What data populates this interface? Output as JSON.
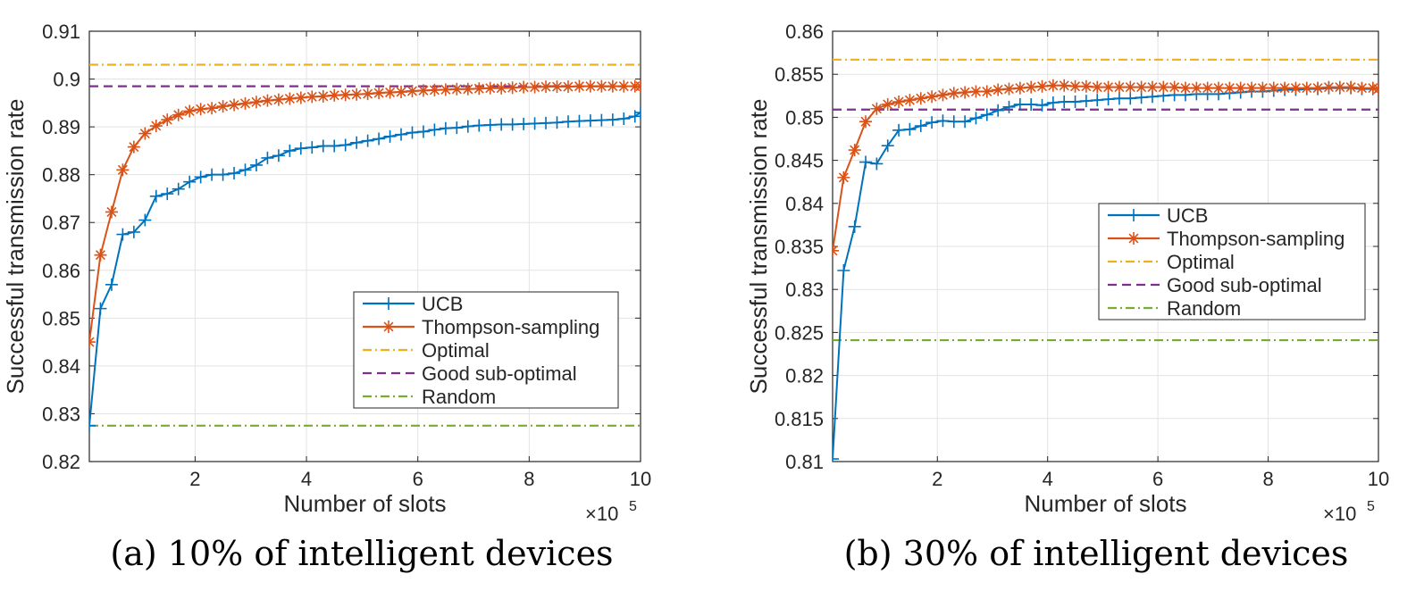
{
  "chart_data": [
    {
      "type": "line",
      "caption": "(a) 10% of intelligent devices",
      "xlabel": "Number of slots",
      "ylabel": "Successful transmission rate",
      "x_multiplier_label": "×10",
      "x_multiplier_exponent": "5",
      "xlim": [
        0.1,
        10
      ],
      "ylim": [
        0.82,
        0.91
      ],
      "xticks": [
        2,
        4,
        6,
        8,
        10
      ],
      "xtick_labels": [
        "2",
        "4",
        "6",
        "8",
        "10"
      ],
      "yticks": [
        0.82,
        0.83,
        0.84,
        0.85,
        0.86,
        0.87,
        0.88,
        0.89,
        0.9,
        0.91
      ],
      "ytick_labels": [
        "0.82",
        "0.83",
        "0.84",
        "0.85",
        "0.86",
        "0.87",
        "0.88",
        "0.89",
        "0.9",
        "0.91"
      ],
      "grid": true,
      "legend_placement": "lower-right",
      "x": [
        0.1,
        0.3,
        0.5,
        0.7,
        0.9,
        1.1,
        1.3,
        1.5,
        1.7,
        1.9,
        2.1,
        2.3,
        2.5,
        2.7,
        2.9,
        3.1,
        3.3,
        3.5,
        3.7,
        3.9,
        4.1,
        4.3,
        4.5,
        4.7,
        4.9,
        5.1,
        5.3,
        5.5,
        5.7,
        5.9,
        6.1,
        6.3,
        6.5,
        6.7,
        6.9,
        7.1,
        7.3,
        7.5,
        7.7,
        7.9,
        8.1,
        8.3,
        8.5,
        8.7,
        8.9,
        9.1,
        9.3,
        9.5,
        9.7,
        9.9,
        10
      ],
      "series": [
        {
          "name": "UCB",
          "color": "#0072BD",
          "style": "solid",
          "marker": "plus",
          "values": [
            0.8275,
            0.852,
            0.857,
            0.8675,
            0.868,
            0.8705,
            0.8755,
            0.876,
            0.877,
            0.8785,
            0.8795,
            0.88,
            0.88,
            0.8803,
            0.881,
            0.882,
            0.8835,
            0.884,
            0.885,
            0.8855,
            0.8857,
            0.886,
            0.886,
            0.8862,
            0.8867,
            0.8871,
            0.8875,
            0.888,
            0.8884,
            0.8888,
            0.889,
            0.8894,
            0.8897,
            0.8898,
            0.8901,
            0.8903,
            0.8904,
            0.8905,
            0.8905,
            0.8906,
            0.8907,
            0.8908,
            0.8909,
            0.8911,
            0.8912,
            0.8913,
            0.8914,
            0.8915,
            0.8917,
            0.8922,
            0.893
          ]
        },
        {
          "name": "Thompson-sampling",
          "color": "#D95319",
          "style": "solid",
          "marker": "asterisk",
          "values": [
            0.845,
            0.8632,
            0.8722,
            0.881,
            0.8858,
            0.8886,
            0.8902,
            0.8915,
            0.8925,
            0.8933,
            0.8937,
            0.8939,
            0.8943,
            0.8946,
            0.8949,
            0.8952,
            0.8955,
            0.8957,
            0.8959,
            0.8961,
            0.8963,
            0.8964,
            0.8966,
            0.8967,
            0.8968,
            0.8969,
            0.8971,
            0.8972,
            0.8973,
            0.8975,
            0.8976,
            0.8977,
            0.8978,
            0.8979,
            0.8979,
            0.898,
            0.8981,
            0.8981,
            0.8982,
            0.8983,
            0.8983,
            0.8984,
            0.8984,
            0.8984,
            0.8985,
            0.8985,
            0.8985,
            0.8985,
            0.8985,
            0.8985,
            0.8985
          ]
        },
        {
          "name": "Optimal",
          "color": "#EDB120",
          "style": "dashdot",
          "constant": 0.903
        },
        {
          "name": "Good sub-optimal",
          "color": "#7E2F8E",
          "style": "dashed",
          "constant": 0.8985
        },
        {
          "name": "Random",
          "color": "#77AC30",
          "style": "dashdot",
          "constant": 0.8275
        }
      ]
    },
    {
      "type": "line",
      "caption": "(b) 30% of intelligent devices",
      "xlabel": "Number of slots",
      "ylabel": "Successful transmission rate",
      "x_multiplier_label": "×10",
      "x_multiplier_exponent": "5",
      "xlim": [
        0.1,
        10
      ],
      "ylim": [
        0.81,
        0.86
      ],
      "xticks": [
        2,
        4,
        6,
        8,
        10
      ],
      "xtick_labels": [
        "2",
        "4",
        "6",
        "8",
        "10"
      ],
      "yticks": [
        0.81,
        0.815,
        0.82,
        0.825,
        0.83,
        0.835,
        0.84,
        0.845,
        0.85,
        0.855,
        0.86
      ],
      "ytick_labels": [
        "0.81",
        "0.815",
        "0.82",
        "0.825",
        "0.83",
        "0.835",
        "0.84",
        "0.845",
        "0.85",
        "0.855",
        "0.86"
      ],
      "grid": true,
      "legend_placement": "center-right",
      "x": [
        0.1,
        0.3,
        0.5,
        0.7,
        0.9,
        1.1,
        1.3,
        1.5,
        1.7,
        1.9,
        2.1,
        2.3,
        2.5,
        2.7,
        2.9,
        3.1,
        3.3,
        3.5,
        3.7,
        3.9,
        4.1,
        4.3,
        4.5,
        4.7,
        4.9,
        5.1,
        5.3,
        5.5,
        5.7,
        5.9,
        6.1,
        6.3,
        6.5,
        6.7,
        6.9,
        7.1,
        7.3,
        7.5,
        7.7,
        7.9,
        8.1,
        8.3,
        8.5,
        8.7,
        8.9,
        9.1,
        9.3,
        9.5,
        9.7,
        9.9,
        10
      ],
      "series": [
        {
          "name": "UCB",
          "color": "#0072BD",
          "style": "solid",
          "marker": "plus",
          "values": [
            0.8103,
            0.8322,
            0.8373,
            0.8448,
            0.8446,
            0.8467,
            0.8485,
            0.8486,
            0.849,
            0.8494,
            0.8496,
            0.8495,
            0.8495,
            0.8499,
            0.8503,
            0.8508,
            0.8512,
            0.8515,
            0.8515,
            0.8514,
            0.8517,
            0.8518,
            0.8518,
            0.8519,
            0.852,
            0.8521,
            0.8522,
            0.8522,
            0.8523,
            0.8524,
            0.8525,
            0.8526,
            0.8526,
            0.8527,
            0.8527,
            0.8527,
            0.8528,
            0.8529,
            0.853,
            0.853,
            0.8531,
            0.8532,
            0.8532,
            0.8533,
            0.8533,
            0.8534,
            0.8534,
            0.8534,
            0.8533,
            0.8533,
            0.8533
          ]
        },
        {
          "name": "Thompson-sampling",
          "color": "#D95319",
          "style": "solid",
          "marker": "asterisk",
          "values": [
            0.8345,
            0.843,
            0.8462,
            0.8495,
            0.851,
            0.8515,
            0.8518,
            0.852,
            0.8522,
            0.8524,
            0.8526,
            0.8528,
            0.8529,
            0.853,
            0.853,
            0.8532,
            0.8533,
            0.8534,
            0.8535,
            0.8536,
            0.8537,
            0.8537,
            0.8536,
            0.8536,
            0.8535,
            0.8535,
            0.8535,
            0.8535,
            0.8535,
            0.8535,
            0.8535,
            0.8535,
            0.8534,
            0.8534,
            0.8534,
            0.8534,
            0.8534,
            0.8534,
            0.8534,
            0.8534,
            0.8534,
            0.8534,
            0.8534,
            0.8534,
            0.8534,
            0.8535,
            0.8535,
            0.8535,
            0.8534,
            0.8534,
            0.8533
          ]
        },
        {
          "name": "Optimal",
          "color": "#EDB120",
          "style": "dashdot",
          "constant": 0.8567
        },
        {
          "name": "Good sub-optimal",
          "color": "#7E2F8E",
          "style": "dashed",
          "constant": 0.8509
        },
        {
          "name": "Random",
          "color": "#77AC30",
          "style": "dashdot",
          "constant": 0.8241
        }
      ]
    }
  ]
}
